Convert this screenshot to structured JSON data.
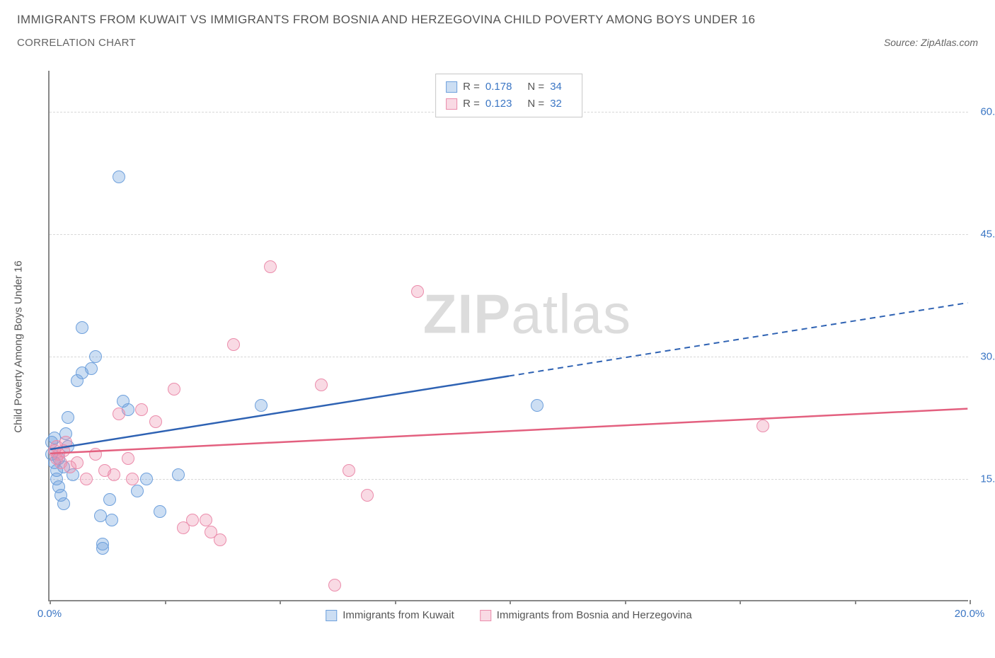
{
  "title": "IMMIGRANTS FROM KUWAIT VS IMMIGRANTS FROM BOSNIA AND HERZEGOVINA CHILD POVERTY AMONG BOYS UNDER 16",
  "subtitle": "CORRELATION CHART",
  "source": "Source: ZipAtlas.com",
  "ylabel": "Child Poverty Among Boys Under 16",
  "watermark_a": "ZIP",
  "watermark_b": "atlas",
  "chart": {
    "type": "scatter",
    "xlim": [
      0,
      20
    ],
    "ylim": [
      0,
      65
    ],
    "xtick_positions": [
      0,
      2.5,
      5,
      7.5,
      10,
      12.5,
      15,
      17.5,
      20
    ],
    "xtick_labels": {
      "0": "0.0%",
      "20": "20.0%"
    },
    "ytick_values": [
      15,
      30,
      45,
      60
    ],
    "ytick_labels": [
      "15.0%",
      "30.0%",
      "45.0%",
      "60.0%"
    ],
    "background_color": "#ffffff",
    "grid_color": "#d8d8d8",
    "axis_color": "#888888",
    "tick_label_color": "#3b76c4",
    "point_radius": 9
  },
  "series": [
    {
      "name": "Immigrants from Kuwait",
      "fill": "rgba(110,160,220,0.35)",
      "stroke": "#6ea0dc",
      "trend_color": "#2e62b3",
      "R": "0.178",
      "N": "34",
      "trend": {
        "x1": 0,
        "y1": 18.5,
        "x2": 10,
        "y2": 27.5,
        "x3": 20,
        "y3": 36.5
      },
      "points": [
        [
          0.05,
          18
        ],
        [
          0.05,
          19.5
        ],
        [
          0.1,
          17
        ],
        [
          0.1,
          20
        ],
        [
          0.15,
          16
        ],
        [
          0.15,
          15
        ],
        [
          0.2,
          14
        ],
        [
          0.2,
          17.5
        ],
        [
          0.25,
          13
        ],
        [
          0.3,
          12
        ],
        [
          0.3,
          16.5
        ],
        [
          0.35,
          20.5
        ],
        [
          0.4,
          22.5
        ],
        [
          0.4,
          19
        ],
        [
          0.5,
          15.5
        ],
        [
          0.6,
          27
        ],
        [
          0.7,
          28
        ],
        [
          0.7,
          33.5
        ],
        [
          0.9,
          28.5
        ],
        [
          1.0,
          30
        ],
        [
          1.1,
          10.5
        ],
        [
          1.15,
          6.5
        ],
        [
          1.15,
          7
        ],
        [
          1.3,
          12.5
        ],
        [
          1.35,
          10
        ],
        [
          1.5,
          52
        ],
        [
          1.6,
          24.5
        ],
        [
          1.7,
          23.5
        ],
        [
          1.9,
          13.5
        ],
        [
          2.1,
          15
        ],
        [
          2.4,
          11
        ],
        [
          2.8,
          15.5
        ],
        [
          4.6,
          24
        ],
        [
          10.6,
          24
        ]
      ]
    },
    {
      "name": "Immigrants from Bosnia and Herzegovina",
      "fill": "rgba(235,140,170,0.32)",
      "stroke": "#eb8cab",
      "trend_color": "#e3607f",
      "R": "0.123",
      "N": "32",
      "trend": {
        "x1": 0,
        "y1": 18,
        "x2": 20,
        "y2": 23.5
      },
      "points": [
        [
          0.1,
          18.5
        ],
        [
          0.15,
          19
        ],
        [
          0.15,
          17.5
        ],
        [
          0.2,
          18
        ],
        [
          0.25,
          17
        ],
        [
          0.3,
          18.5
        ],
        [
          0.35,
          19.5
        ],
        [
          0.45,
          16.5
        ],
        [
          0.6,
          17
        ],
        [
          0.8,
          15
        ],
        [
          1.0,
          18
        ],
        [
          1.2,
          16
        ],
        [
          1.4,
          15.5
        ],
        [
          1.5,
          23
        ],
        [
          1.7,
          17.5
        ],
        [
          1.8,
          15
        ],
        [
          2.0,
          23.5
        ],
        [
          2.3,
          22
        ],
        [
          2.7,
          26
        ],
        [
          2.9,
          9
        ],
        [
          3.1,
          10
        ],
        [
          3.4,
          10
        ],
        [
          3.5,
          8.5
        ],
        [
          3.7,
          7.5
        ],
        [
          4.0,
          31.5
        ],
        [
          4.8,
          41
        ],
        [
          5.9,
          26.5
        ],
        [
          6.2,
          2
        ],
        [
          6.5,
          16
        ],
        [
          6.9,
          13
        ],
        [
          8.0,
          38
        ],
        [
          15.5,
          21.5
        ]
      ]
    }
  ],
  "legend_labels": {
    "R_prefix": "R = ",
    "N_prefix": "N = "
  }
}
